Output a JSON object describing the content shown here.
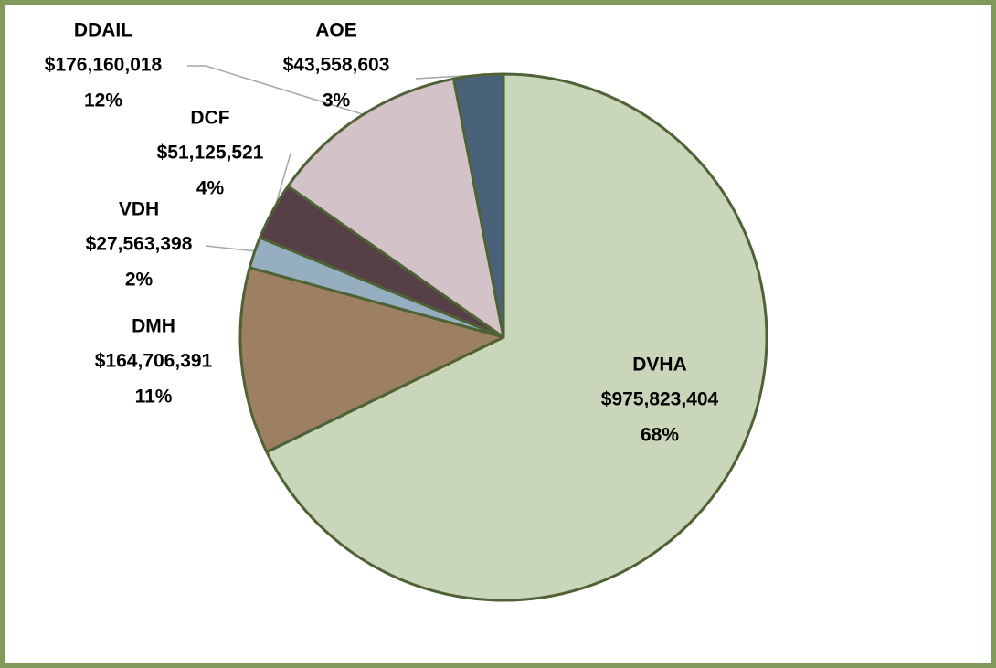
{
  "chart_data": {
    "type": "pie",
    "categories": [
      "DVHA",
      "DMH",
      "VDH",
      "DCF",
      "DDAIL",
      "AOE"
    ],
    "values": [
      975823404,
      164706391,
      27563398,
      51125521,
      176160018,
      43558603
    ],
    "value_labels": [
      "$975,823,404",
      "$164,706,391",
      "$27,563,398",
      "$51,125,521",
      "$176,160,018",
      "$43,558,603"
    ],
    "percent_labels": [
      "68%",
      "11%",
      "2%",
      "4%",
      "12%",
      "3%"
    ],
    "colors": [
      "#cad6b9",
      "#9c8061",
      "#95afc1",
      "#573f47",
      "#d3c2c7",
      "#4a6279"
    ]
  }
}
